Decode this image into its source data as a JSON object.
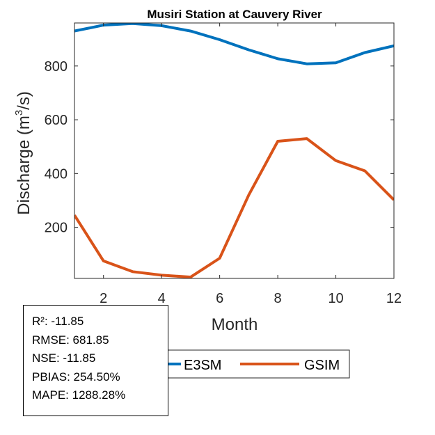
{
  "chart_data": {
    "type": "line",
    "title": "Musiri  Station at  Cauvery  River",
    "xlabel": "Month",
    "ylabel_main": "Discharge (m",
    "ylabel_sup": "3",
    "ylabel_tail": "/s)",
    "xlim": [
      1,
      12
    ],
    "ylim": [
      10,
      960
    ],
    "xticks": [
      2,
      4,
      6,
      8,
      10,
      12
    ],
    "yticks": [
      200,
      400,
      600,
      800
    ],
    "x": [
      1,
      2,
      3,
      4,
      5,
      6,
      7,
      8,
      9,
      10,
      11,
      12
    ],
    "series": [
      {
        "name": "E3SM",
        "color": "#0072BD",
        "values": [
          930,
          952,
          958,
          950,
          930,
          898,
          860,
          827,
          808,
          812,
          850,
          875
        ]
      },
      {
        "name": "GSIM",
        "color": "#D95319",
        "values": [
          245,
          75,
          35,
          22,
          15,
          85,
          320,
          520,
          530,
          448,
          410,
          302
        ]
      }
    ],
    "legend": {
      "position": "bottom-center",
      "entries": [
        "E3SM",
        "GSIM"
      ]
    }
  },
  "stats": [
    {
      "text": "R²: -11.85"
    },
    {
      "text": "RMSE: 681.85"
    },
    {
      "text": "NSE: -11.85"
    },
    {
      "text": "PBIAS: 254.50%"
    },
    {
      "text": "MAPE: 1288.28%"
    }
  ]
}
